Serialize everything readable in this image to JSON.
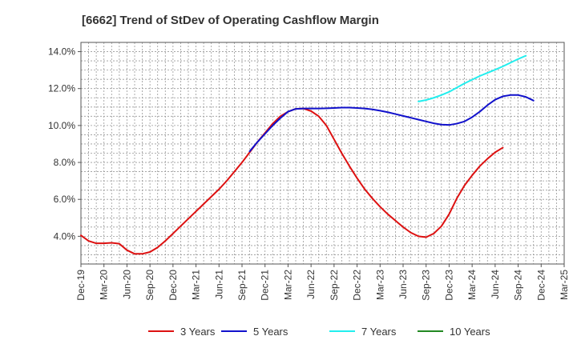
{
  "chart_data": {
    "type": "line",
    "title": "[6662]  Trend of StDev of Operating Cashflow Margin",
    "xlabel": "",
    "ylabel": "",
    "x_ticks": [
      "Dec-19",
      "Mar-20",
      "Jun-20",
      "Sep-20",
      "Dec-20",
      "Mar-21",
      "Jun-21",
      "Sep-21",
      "Dec-21",
      "Mar-22",
      "Jun-22",
      "Sep-22",
      "Dec-22",
      "Mar-23",
      "Jun-23",
      "Sep-23",
      "Dec-23",
      "Mar-24",
      "Jun-24",
      "Sep-24",
      "Dec-24",
      "Mar-25"
    ],
    "y_ticks": [
      "4.0%",
      "6.0%",
      "8.0%",
      "10.0%",
      "12.0%",
      "14.0%"
    ],
    "y_tick_values": [
      4,
      6,
      8,
      10,
      12,
      14
    ],
    "ylim": [
      2.5,
      14.5
    ],
    "grid": true,
    "legend_position": "bottom",
    "series": [
      {
        "name": "3 Years",
        "color": "#dd1111",
        "start_index": 0,
        "values": [
          4.05,
          3.75,
          3.62,
          3.62,
          3.65,
          3.6,
          3.25,
          3.05,
          3.05,
          3.15,
          3.4,
          3.75,
          4.15,
          4.55,
          4.95,
          5.35,
          5.75,
          6.15,
          6.55,
          7.0,
          7.5,
          8.0,
          8.55,
          9.1,
          9.6,
          10.1,
          10.5,
          10.75,
          10.9,
          10.92,
          10.78,
          10.5,
          10.0,
          9.25,
          8.5,
          7.8,
          7.15,
          6.55,
          6.05,
          5.6,
          5.2,
          4.85,
          4.5,
          4.2,
          4.0,
          3.95,
          4.15,
          4.55,
          5.2,
          6.05,
          6.75,
          7.3,
          7.8,
          8.2,
          8.55,
          8.8
        ]
      },
      {
        "name": "5 Years",
        "color": "#1111cc",
        "start_index": 22,
        "values": [
          8.6,
          9.1,
          9.55,
          10.0,
          10.4,
          10.75,
          10.9,
          10.92,
          10.92,
          10.92,
          10.93,
          10.95,
          10.97,
          10.97,
          10.95,
          10.92,
          10.87,
          10.8,
          10.72,
          10.62,
          10.52,
          10.42,
          10.32,
          10.22,
          10.12,
          10.05,
          10.03,
          10.1,
          10.22,
          10.45,
          10.75,
          11.1,
          11.4,
          11.58,
          11.65,
          11.65,
          11.55,
          11.35
        ]
      },
      {
        "name": "7 Years",
        "color": "#22eeee",
        "start_index": 44,
        "values": [
          11.3,
          11.38,
          11.5,
          11.65,
          11.82,
          12.05,
          12.28,
          12.48,
          12.68,
          12.85,
          13.02,
          13.2,
          13.4,
          13.6,
          13.78
        ]
      },
      {
        "name": "10 Years",
        "color": "#228822",
        "start_index": 0,
        "values": []
      }
    ]
  }
}
